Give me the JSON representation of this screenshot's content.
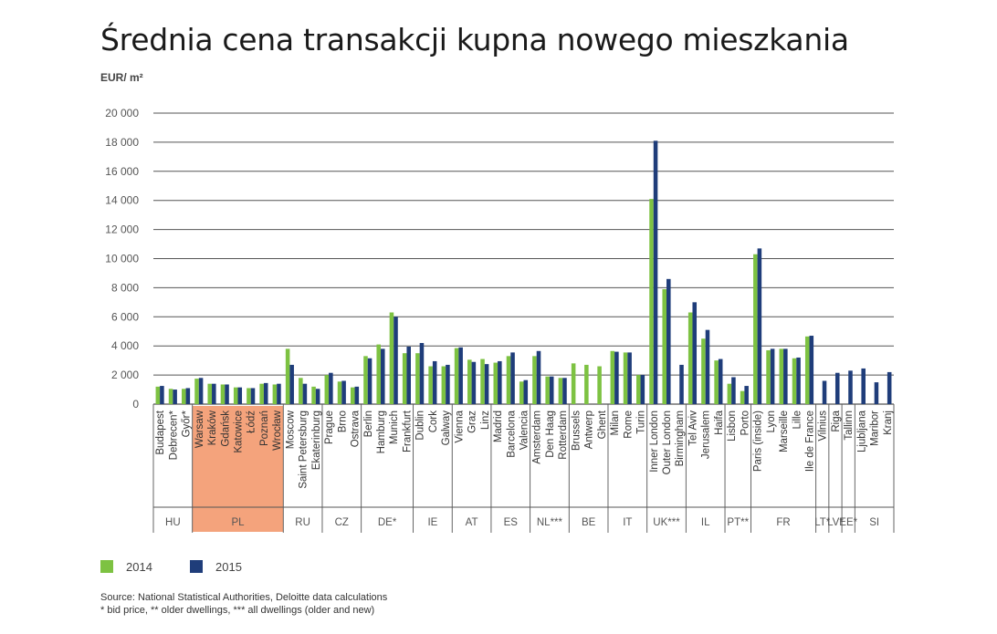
{
  "title": "Średnia cena transakcji kupna nowego mieszkania",
  "unit_label": "EUR/ m²",
  "legend": {
    "s2014": "2014",
    "s2015": "2015"
  },
  "colors": {
    "s2014": "#7dc242",
    "s2015": "#1f3d7a",
    "highlight": "#f4a37c",
    "grid": "#555555"
  },
  "source_line": "Source: National Statistical Authorities, Deloitte data calculations",
  "footnote_line": "* bid price, ** older dwellings, *** all dwellings (older and new)",
  "chart_data": {
    "type": "bar",
    "ylim": [
      0,
      20000
    ],
    "yticks": [
      0,
      2000,
      4000,
      6000,
      8000,
      10000,
      12000,
      14000,
      16000,
      18000,
      20000
    ],
    "ytick_labels": [
      "0",
      "2 000",
      "4 000",
      "6 000",
      "8 000",
      "10 000",
      "12 000",
      "14 000",
      "16 000",
      "18 000",
      "20 000"
    ],
    "grid": true,
    "legend_position": "bottom-left",
    "categories": [
      "Budapest",
      "Debrecen*",
      "Győr*",
      "Warsaw",
      "Kraków",
      "Gdańsk",
      "Katowice",
      "Łódź",
      "Poznań",
      "Wrocław",
      "Moscow",
      "Saint Petersburg",
      "Ekaterinburg",
      "Prague",
      "Brno",
      "Ostrava",
      "Berlin",
      "Hamburg",
      "Munich",
      "Frankfurt",
      "Dublin",
      "Cork",
      "Galway",
      "Vienna",
      "Graz",
      "Linz",
      "Madrid",
      "Barcelona",
      "Valencia",
      "Amsterdam",
      "Den Haag",
      "Rotterdam",
      "Brussels",
      "Antwerp",
      "Ghent",
      "Milan",
      "Rome",
      "Turin",
      "Inner London",
      "Outer London",
      "Birmingham",
      "Tel Aviv",
      "Jerusalem",
      "Haifa",
      "Lisbon",
      "Porto",
      "Paris (inside)",
      "Lyon",
      "Marseille",
      "Lille",
      "Ile de France",
      "Vilnius",
      "Riga",
      "Tallinn",
      "Ljubljana",
      "Maribor",
      "Kranj"
    ],
    "series": [
      {
        "name": "2014",
        "values": [
          1200,
          1050,
          1050,
          1750,
          1400,
          1350,
          1150,
          1100,
          1400,
          1350,
          3800,
          1800,
          1200,
          2000,
          1550,
          1150,
          3300,
          4100,
          6300,
          3500,
          3500,
          2600,
          2600,
          3850,
          3050,
          3100,
          2850,
          3300,
          1550,
          3300,
          1900,
          1800,
          2800,
          2700,
          2600,
          3650,
          3550,
          2000,
          14100,
          7900,
          null,
          6300,
          4500,
          3000,
          1400,
          900,
          10300,
          3700,
          3800,
          3150,
          4650,
          null,
          null,
          null,
          null,
          null,
          null
        ]
      },
      {
        "name": "2015",
        "values": [
          1250,
          1000,
          1100,
          1800,
          1400,
          1350,
          1150,
          1100,
          1450,
          1400,
          2700,
          1400,
          1050,
          2150,
          1600,
          1200,
          3150,
          3800,
          6000,
          3950,
          4200,
          2950,
          2700,
          3900,
          2900,
          2750,
          2950,
          3550,
          1650,
          3650,
          1900,
          1800,
          null,
          null,
          null,
          3600,
          3550,
          2000,
          18100,
          8600,
          2700,
          7000,
          5100,
          3100,
          1850,
          1250,
          10700,
          3800,
          3800,
          3200,
          4700,
          1600,
          2150,
          2300,
          2450,
          1500,
          2200
        ]
      }
    ],
    "groups": [
      {
        "label": "HU",
        "count": 3
      },
      {
        "label": "PL",
        "count": 7
      },
      {
        "label": "RU",
        "count": 3
      },
      {
        "label": "CZ",
        "count": 3
      },
      {
        "label": "DE*",
        "count": 4
      },
      {
        "label": "IE",
        "count": 3
      },
      {
        "label": "AT",
        "count": 3
      },
      {
        "label": "ES",
        "count": 3
      },
      {
        "label": "NL***",
        "count": 3
      },
      {
        "label": "BE",
        "count": 3
      },
      {
        "label": "IT",
        "count": 3
      },
      {
        "label": "UK***",
        "count": 3
      },
      {
        "label": "IL",
        "count": 3
      },
      {
        "label": "PT**",
        "count": 2
      },
      {
        "label": "FR",
        "count": 5
      },
      {
        "label": "LT*",
        "count": 1
      },
      {
        "label": "LV*",
        "count": 1
      },
      {
        "label": "EE*",
        "count": 1
      },
      {
        "label": "SI",
        "count": 3
      }
    ],
    "highlight_group": "PL"
  }
}
